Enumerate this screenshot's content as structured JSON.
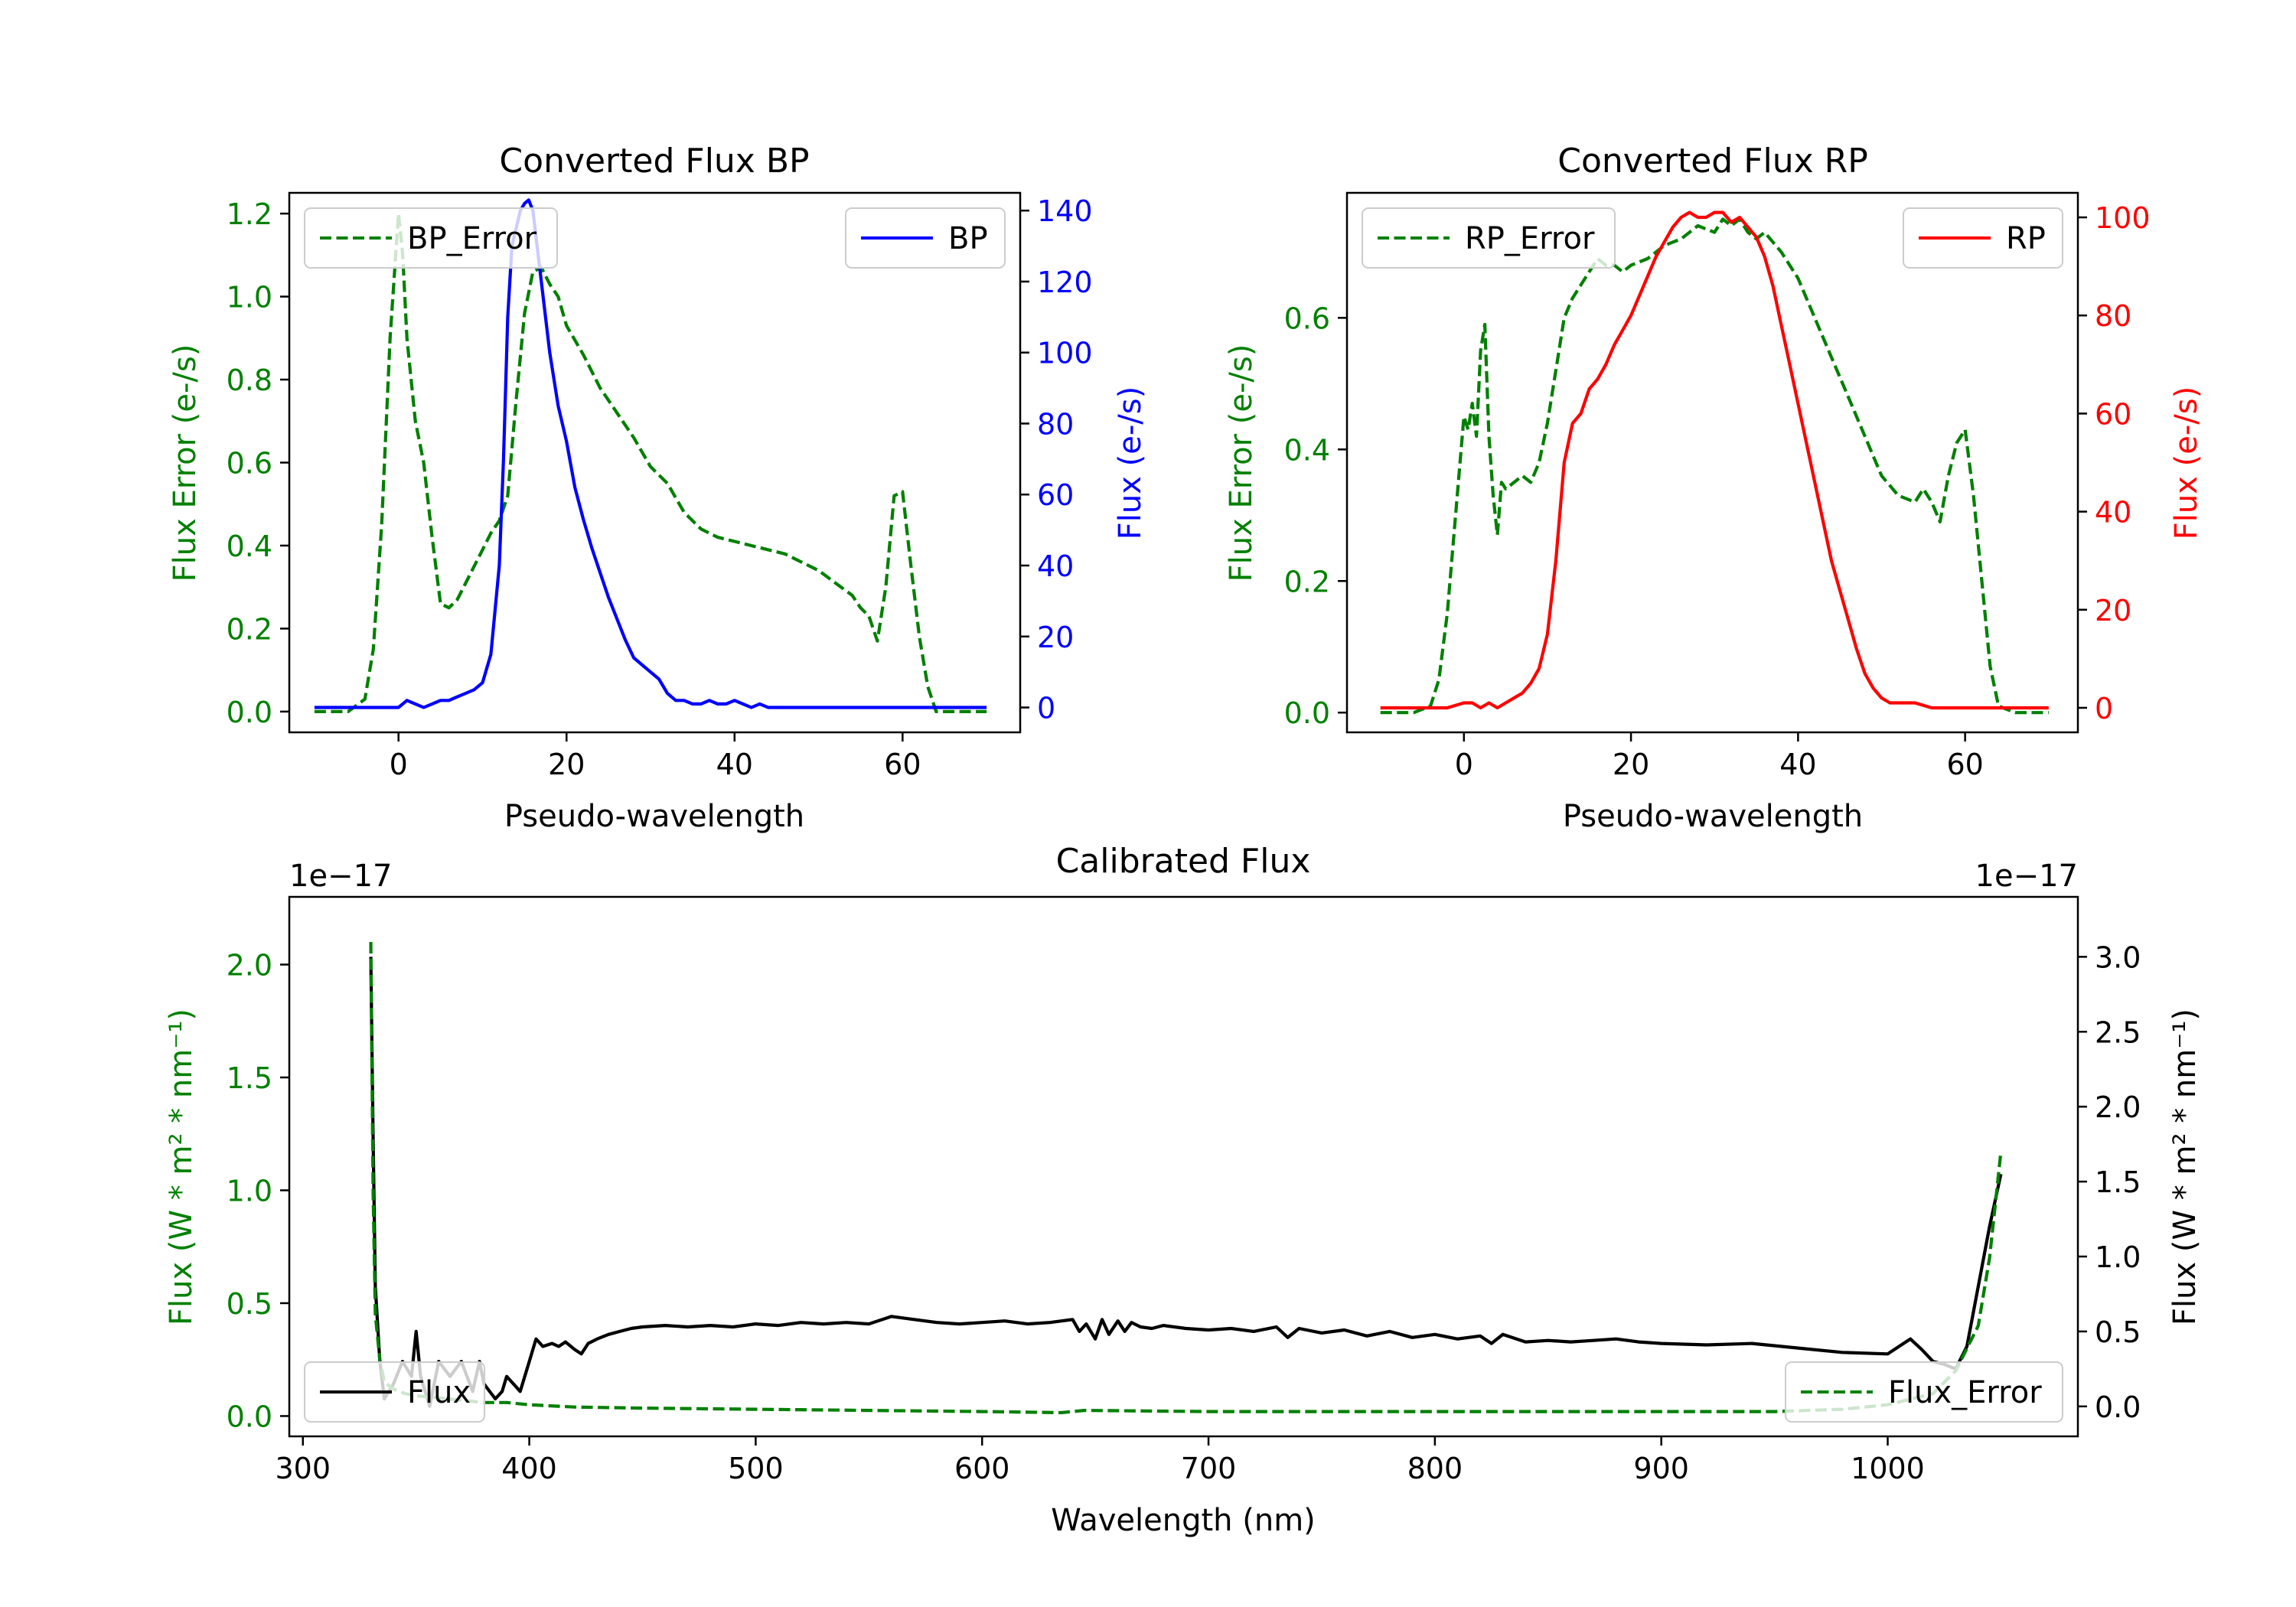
{
  "colors": {
    "green": "#008000",
    "blue": "#0000ff",
    "red": "#ff0000",
    "black": "#000000",
    "axis": "#000000"
  },
  "chart_data": [
    {
      "id": "bp",
      "type": "line",
      "title": "Converted Flux BP",
      "xlabel": "Pseudo-wavelength",
      "xlim": [
        -13,
        74
      ],
      "xticks": [
        0,
        20,
        40,
        60
      ],
      "xtick_labels": [
        "0",
        "20",
        "40",
        "60"
      ],
      "left_axis": {
        "label": "Flux Error (e-/s)",
        "color": "#008000",
        "ylim": [
          -0.05,
          1.25
        ],
        "ticks": [
          0.0,
          0.2,
          0.4,
          0.6,
          0.8,
          1.0,
          1.2
        ],
        "tick_labels": [
          "0.0",
          "0.2",
          "0.4",
          "0.6",
          "0.8",
          "1.0",
          "1.2"
        ]
      },
      "right_axis": {
        "label": "Flux (e-/s)",
        "color": "#0000ff",
        "ylim": [
          -7,
          145
        ],
        "ticks": [
          0,
          20,
          40,
          60,
          80,
          100,
          120,
          140
        ],
        "tick_labels": [
          "0",
          "20",
          "40",
          "60",
          "80",
          "100",
          "120",
          "140"
        ]
      },
      "series": [
        {
          "name": "BP_Error",
          "axis": "left",
          "style": "dashed",
          "color": "#008000",
          "x": [
            -10,
            -6,
            -4,
            -3,
            -2,
            -1,
            0,
            0.5,
            1,
            2,
            3,
            4,
            5,
            6,
            7,
            8,
            9,
            10,
            11,
            12,
            13,
            14,
            15,
            16,
            17,
            18,
            19,
            20,
            22,
            24,
            26,
            28,
            30,
            32,
            34,
            36,
            38,
            40,
            42,
            44,
            46,
            48,
            50,
            52,
            54,
            55,
            56,
            57,
            58,
            59,
            60,
            61,
            62,
            63,
            64,
            66,
            68,
            70
          ],
          "y": [
            0.0,
            0.0,
            0.03,
            0.15,
            0.45,
            0.9,
            1.2,
            1.1,
            0.9,
            0.7,
            0.6,
            0.42,
            0.26,
            0.25,
            0.27,
            0.31,
            0.35,
            0.39,
            0.43,
            0.46,
            0.52,
            0.75,
            0.96,
            1.06,
            1.07,
            1.03,
            1.0,
            0.93,
            0.86,
            0.78,
            0.72,
            0.66,
            0.59,
            0.55,
            0.48,
            0.44,
            0.42,
            0.41,
            0.4,
            0.39,
            0.38,
            0.36,
            0.34,
            0.31,
            0.28,
            0.25,
            0.23,
            0.17,
            0.3,
            0.52,
            0.53,
            0.35,
            0.18,
            0.06,
            0.0,
            0.0,
            0.0,
            0.0
          ]
        },
        {
          "name": "BP",
          "axis": "right",
          "style": "solid",
          "color": "#0000ff",
          "x": [
            -10,
            -6,
            -4,
            -2,
            0,
            1,
            2,
            3,
            4,
            5,
            6,
            7,
            8,
            9,
            10,
            11,
            12,
            12.5,
            13,
            13.5,
            14,
            14.5,
            15,
            15.5,
            16,
            16.5,
            17,
            18,
            19,
            20,
            21,
            22,
            23,
            24,
            25,
            26,
            27,
            28,
            29,
            30,
            31,
            32,
            33,
            34,
            35,
            36,
            37,
            38,
            39,
            40,
            41,
            42,
            43,
            44,
            45,
            46,
            48,
            50,
            52,
            55,
            58,
            60,
            62,
            65,
            70
          ],
          "y": [
            0,
            0,
            0,
            0,
            0,
            2,
            1,
            0,
            1,
            2,
            2,
            3,
            4,
            5,
            7,
            15,
            40,
            70,
            110,
            130,
            135,
            140,
            142,
            143,
            140,
            130,
            120,
            100,
            85,
            75,
            62,
            53,
            45,
            38,
            31,
            25,
            19,
            14,
            12,
            10,
            8,
            4,
            2,
            2,
            1,
            1,
            2,
            1,
            1,
            2,
            1,
            0,
            1,
            0,
            0,
            0,
            0,
            0,
            0,
            0,
            0,
            0,
            0,
            0,
            0
          ]
        }
      ]
    },
    {
      "id": "rp",
      "type": "line",
      "title": "Converted Flux RP",
      "xlabel": "Pseudo-wavelength",
      "xlim": [
        -14,
        73.5
      ],
      "xticks": [
        0,
        20,
        40,
        60
      ],
      "xtick_labels": [
        "0",
        "20",
        "40",
        "60"
      ],
      "left_axis": {
        "label": "Flux Error (e-/s)",
        "color": "#008000",
        "ylim": [
          -0.03,
          0.79
        ],
        "ticks": [
          0.0,
          0.2,
          0.4,
          0.6
        ],
        "tick_labels": [
          "0.0",
          "0.2",
          "0.4",
          "0.6"
        ]
      },
      "right_axis": {
        "label": "Flux (e-/s)",
        "color": "#ff0000",
        "ylim": [
          -5,
          105
        ],
        "ticks": [
          0,
          20,
          40,
          60,
          80,
          100
        ],
        "tick_labels": [
          "0",
          "20",
          "40",
          "60",
          "80",
          "100"
        ]
      },
      "series": [
        {
          "name": "RP_Error",
          "axis": "left",
          "style": "dashed",
          "color": "#008000",
          "x": [
            -10,
            -6,
            -4,
            -3,
            -2,
            -1,
            0,
            0.5,
            1,
            1.5,
            2,
            2.5,
            3,
            3.5,
            4,
            4.5,
            5,
            6,
            7,
            8,
            9,
            10,
            11,
            12,
            13,
            14,
            15,
            16,
            17,
            18,
            19,
            20,
            22,
            24,
            26,
            28,
            30,
            31,
            32,
            33,
            34,
            35,
            36,
            38,
            40,
            42,
            44,
            46,
            48,
            50,
            52,
            54,
            55,
            56,
            57,
            58,
            59,
            60,
            61,
            62,
            63,
            64,
            66,
            70
          ],
          "y": [
            0,
            0,
            0.01,
            0.05,
            0.15,
            0.3,
            0.45,
            0.43,
            0.47,
            0.42,
            0.55,
            0.59,
            0.42,
            0.33,
            0.27,
            0.35,
            0.34,
            0.35,
            0.36,
            0.35,
            0.38,
            0.44,
            0.52,
            0.6,
            0.63,
            0.65,
            0.67,
            0.69,
            0.68,
            0.68,
            0.67,
            0.68,
            0.69,
            0.71,
            0.72,
            0.74,
            0.73,
            0.75,
            0.74,
            0.75,
            0.73,
            0.72,
            0.73,
            0.7,
            0.66,
            0.6,
            0.54,
            0.48,
            0.42,
            0.36,
            0.33,
            0.32,
            0.34,
            0.32,
            0.29,
            0.36,
            0.41,
            0.43,
            0.33,
            0.2,
            0.07,
            0.01,
            0,
            0
          ]
        },
        {
          "name": "RP",
          "axis": "right",
          "style": "solid",
          "color": "#ff0000",
          "x": [
            -10,
            -4,
            -2,
            0,
            1,
            2,
            3,
            4,
            5,
            6,
            7,
            8,
            9,
            10,
            11,
            12,
            13,
            14,
            15,
            16,
            17,
            18,
            19,
            20,
            21,
            22,
            23,
            24,
            25,
            26,
            27,
            28,
            29,
            30,
            31,
            32,
            33,
            34,
            35,
            36,
            37,
            38,
            39,
            40,
            41,
            42,
            43,
            44,
            45,
            46,
            47,
            48,
            49,
            50,
            51,
            52,
            54,
            56,
            58,
            60,
            62,
            66,
            70
          ],
          "y": [
            0,
            0,
            0,
            1,
            1,
            0,
            1,
            0,
            1,
            2,
            3,
            5,
            8,
            15,
            30,
            50,
            58,
            60,
            65,
            67,
            70,
            74,
            77,
            80,
            84,
            88,
            92,
            95,
            98,
            100,
            101,
            100,
            100,
            101,
            101,
            99,
            100,
            98,
            96,
            92,
            86,
            78,
            70,
            62,
            54,
            46,
            38,
            30,
            24,
            18,
            12,
            7,
            4,
            2,
            1,
            1,
            1,
            0,
            0,
            0,
            0,
            0,
            0
          ]
        }
      ]
    },
    {
      "id": "calibrated",
      "type": "line",
      "title": "Calibrated Flux",
      "xlabel": "Wavelength (nm)",
      "xlim": [
        294,
        1084
      ],
      "xticks": [
        300,
        400,
        500,
        600,
        700,
        800,
        900,
        1000
      ],
      "xtick_labels": [
        "300",
        "400",
        "500",
        "600",
        "700",
        "800",
        "900",
        "1000"
      ],
      "left_axis": {
        "label": "Flux (W * m² * nm⁻¹)",
        "offset": "1e−17",
        "color": "#008000",
        "ylim": [
          -0.09,
          2.3
        ],
        "ticks": [
          0.0,
          0.5,
          1.0,
          1.5,
          2.0
        ],
        "tick_labels": [
          "0.0",
          "0.5",
          "1.0",
          "1.5",
          "2.0"
        ]
      },
      "right_axis": {
        "label": "Flux (W * m² * nm⁻¹)",
        "offset": "1e−17",
        "color": "#000000",
        "ylim": [
          -0.2,
          3.4
        ],
        "ticks": [
          0.0,
          0.5,
          1.0,
          1.5,
          2.0,
          2.5,
          3.0
        ],
        "tick_labels": [
          "0.0",
          "0.5",
          "1.0",
          "1.5",
          "2.0",
          "2.5",
          "3.0"
        ]
      },
      "series": [
        {
          "name": "Flux",
          "axis": "right",
          "style": "solid",
          "color": "#000000",
          "x": [
            330,
            331,
            332,
            334,
            336,
            340,
            344,
            348,
            350,
            352,
            356,
            360,
            365,
            370,
            375,
            378,
            380,
            385,
            388,
            390,
            393,
            396,
            400,
            403,
            406,
            410,
            413,
            416,
            420,
            423,
            426,
            430,
            435,
            440,
            445,
            450,
            460,
            470,
            480,
            490,
            500,
            510,
            520,
            530,
            540,
            550,
            560,
            570,
            580,
            590,
            600,
            610,
            620,
            630,
            640,
            643,
            646,
            650,
            653,
            656,
            660,
            663,
            666,
            670,
            675,
            680,
            690,
            700,
            710,
            720,
            730,
            735,
            740,
            750,
            760,
            770,
            780,
            790,
            800,
            810,
            820,
            825,
            830,
            840,
            850,
            860,
            870,
            880,
            890,
            900,
            920,
            940,
            960,
            980,
            1000,
            1010,
            1015,
            1020,
            1025,
            1030,
            1035,
            1040,
            1045,
            1050
          ],
          "y": [
            3.0,
            1.8,
            0.8,
            0.3,
            0.05,
            0.15,
            0.3,
            0.2,
            0.5,
            0.2,
            0.0,
            0.3,
            0.2,
            0.3,
            0.1,
            0.3,
            0.15,
            0.05,
            0.1,
            0.2,
            0.15,
            0.1,
            0.3,
            0.45,
            0.4,
            0.42,
            0.4,
            0.43,
            0.38,
            0.35,
            0.42,
            0.45,
            0.48,
            0.5,
            0.52,
            0.53,
            0.54,
            0.53,
            0.54,
            0.53,
            0.55,
            0.54,
            0.56,
            0.55,
            0.56,
            0.55,
            0.6,
            0.58,
            0.56,
            0.55,
            0.56,
            0.57,
            0.55,
            0.56,
            0.58,
            0.5,
            0.55,
            0.45,
            0.58,
            0.48,
            0.57,
            0.5,
            0.56,
            0.53,
            0.52,
            0.54,
            0.52,
            0.51,
            0.52,
            0.5,
            0.53,
            0.46,
            0.52,
            0.49,
            0.51,
            0.47,
            0.5,
            0.46,
            0.48,
            0.45,
            0.47,
            0.42,
            0.48,
            0.43,
            0.44,
            0.43,
            0.44,
            0.45,
            0.43,
            0.42,
            0.41,
            0.42,
            0.39,
            0.36,
            0.35,
            0.45,
            0.38,
            0.3,
            0.28,
            0.25,
            0.4,
            0.8,
            1.2,
            1.55
          ]
        },
        {
          "name": "Flux_Error",
          "axis": "left",
          "style": "dashed",
          "color": "#008000",
          "x": [
            330,
            331,
            332,
            334,
            336,
            340,
            345,
            350,
            360,
            370,
            380,
            390,
            400,
            420,
            450,
            500,
            550,
            600,
            635,
            640,
            645,
            700,
            800,
            900,
            950,
            980,
            1000,
            1020,
            1030,
            1040,
            1045,
            1050
          ],
          "y": [
            2.1,
            1.0,
            0.45,
            0.25,
            0.15,
            0.12,
            0.1,
            0.09,
            0.08,
            0.07,
            0.06,
            0.06,
            0.05,
            0.04,
            0.035,
            0.03,
            0.025,
            0.02,
            0.015,
            0.02,
            0.025,
            0.02,
            0.02,
            0.02,
            0.02,
            0.03,
            0.05,
            0.1,
            0.2,
            0.4,
            0.7,
            1.17
          ]
        }
      ]
    }
  ]
}
